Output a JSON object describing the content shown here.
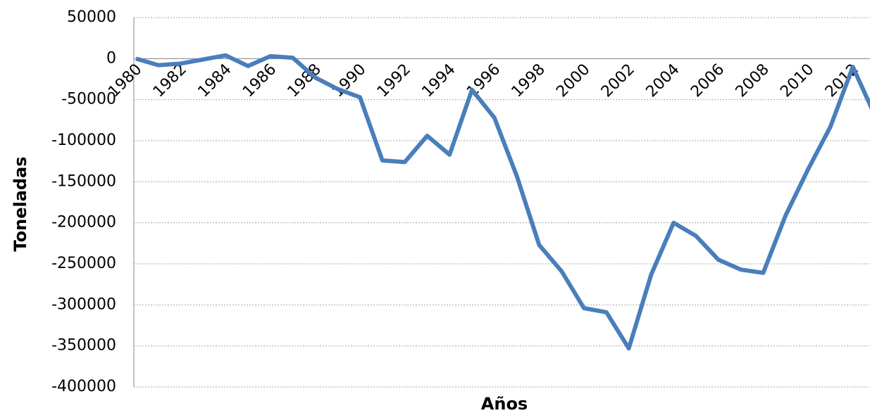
{
  "chart_data": {
    "type": "line",
    "x_label": "Años",
    "y_label": "Toneladas",
    "categories": [
      "1980",
      null,
      "1982",
      null,
      "1984",
      null,
      "1986",
      null,
      "1988",
      null,
      "1990",
      null,
      "1992",
      null,
      "1994",
      null,
      "1996",
      null,
      "1998",
      null,
      "2000",
      null,
      "2002",
      null,
      "2004",
      null,
      "2006",
      null,
      "2008",
      null,
      "2010",
      null,
      "2012",
      null
    ],
    "values": [
      0,
      -8000,
      -6000,
      -1000,
      4000,
      -9000,
      3000,
      1000,
      -23000,
      -37000,
      -47000,
      -124000,
      -126000,
      -94000,
      -117000,
      -38000,
      -72000,
      -143000,
      -227000,
      -259000,
      -304000,
      -309000,
      -353000,
      -263000,
      -200000,
      -216000,
      -245000,
      -257000,
      -261000,
      -191000,
      -135000,
      -83000,
      -10000,
      -70000
    ],
    "color": "#4a7ebb",
    "ylim": [
      -400000,
      50000
    ],
    "yticks": [
      -400000,
      -350000,
      -300000,
      -250000,
      -200000,
      -150000,
      -100000,
      -50000,
      0,
      50000
    ],
    "grid": true
  }
}
